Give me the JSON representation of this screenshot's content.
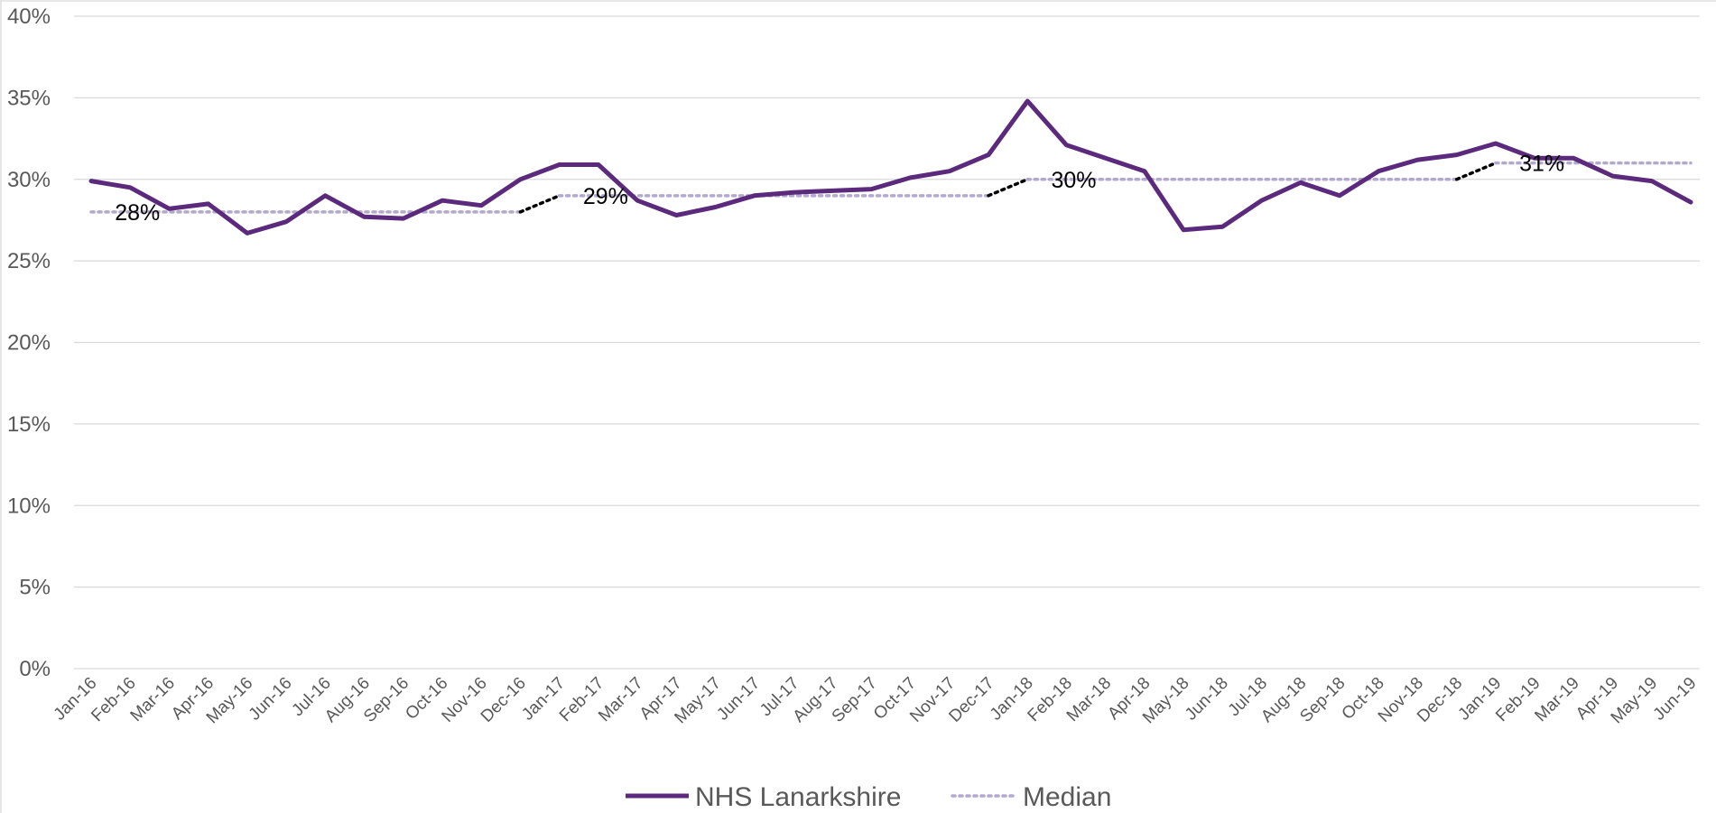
{
  "chart_data": {
    "type": "line",
    "x": [
      "Jan-16",
      "Feb-16",
      "Mar-16",
      "Apr-16",
      "May-16",
      "Jun-16",
      "Jul-16",
      "Aug-16",
      "Sep-16",
      "Oct-16",
      "Nov-16",
      "Dec-16",
      "Jan-17",
      "Feb-17",
      "Mar-17",
      "Apr-17",
      "May-17",
      "Jun-17",
      "Jul-17",
      "Aug-17",
      "Sep-17",
      "Oct-17",
      "Nov-17",
      "Dec-17",
      "Jan-18",
      "Feb-18",
      "Mar-18",
      "Apr-18",
      "May-18",
      "Jun-18",
      "Jul-18",
      "Aug-18",
      "Sep-18",
      "Oct-18",
      "Nov-18",
      "Dec-18",
      "Jan-19",
      "Feb-19",
      "Mar-19",
      "Apr-19",
      "May-19",
      "Jun-19"
    ],
    "y_ticks": [
      "0%",
      "5%",
      "10%",
      "15%",
      "20%",
      "25%",
      "30%",
      "35%",
      "40%"
    ],
    "ylim": [
      0,
      40
    ],
    "series": [
      {
        "name": "NHS Lanarkshire",
        "color": "#5b2a7c",
        "style": "solid",
        "values": [
          29.9,
          29.5,
          28.2,
          28.5,
          26.7,
          27.4,
          29.0,
          27.7,
          27.6,
          28.7,
          28.4,
          30.0,
          30.9,
          30.9,
          28.7,
          27.8,
          28.3,
          29.0,
          29.2,
          29.3,
          29.4,
          30.1,
          30.5,
          31.5,
          34.8,
          32.1,
          31.3,
          30.5,
          26.9,
          27.1,
          28.7,
          29.8,
          29.0,
          30.5,
          31.2,
          31.5,
          32.2,
          31.3,
          31.3,
          30.2,
          29.9,
          28.6
        ]
      },
      {
        "name": "Median",
        "color": "#b3a8cf",
        "style": "dotted",
        "values": [
          28,
          28,
          28,
          28,
          28,
          28,
          28,
          28,
          28,
          28,
          28,
          28,
          29,
          29,
          29,
          29,
          29,
          29,
          29,
          29,
          29,
          29,
          29,
          29,
          30,
          30,
          30,
          30,
          30,
          30,
          30,
          30,
          30,
          30,
          30,
          30,
          31,
          31,
          31,
          31,
          31,
          31
        ]
      }
    ],
    "annotations": [
      {
        "text": "28%",
        "x": "Feb-16",
        "y": 28
      },
      {
        "text": "29%",
        "x": "Feb-17",
        "y": 29
      },
      {
        "text": "30%",
        "x": "Feb-18",
        "y": 30
      },
      {
        "text": "31%",
        "x": "Feb-19",
        "y": 31
      }
    ],
    "median_step_connector_color": "#000000",
    "grid": true,
    "legend_position": "bottom",
    "title": "",
    "xlabel": "",
    "ylabel": ""
  }
}
